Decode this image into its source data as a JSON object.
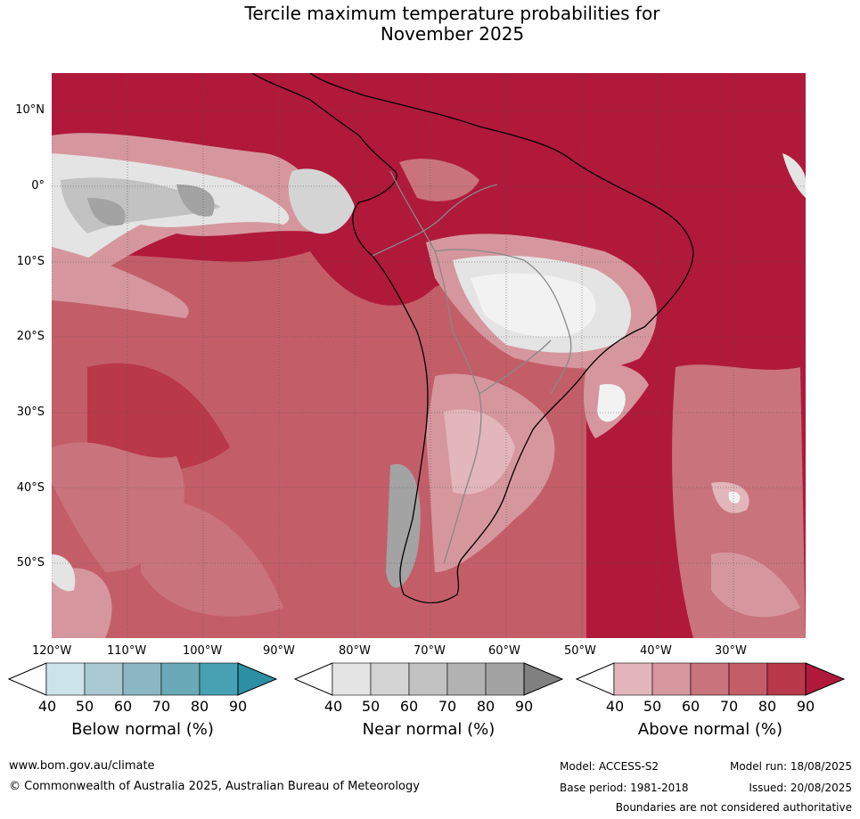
{
  "title": {
    "line1": "Tercile maximum temperature probabilities for",
    "line2": "November 2025"
  },
  "axes": {
    "lat_labels": [
      "10°N",
      "0°",
      "10°S",
      "20°S",
      "30°S",
      "40°S",
      "50°S"
    ],
    "lon_labels": [
      "120°W",
      "110°W",
      "100°W",
      "90°W",
      "80°W",
      "70°W",
      "60°W",
      "50°W",
      "40°W",
      "30°W"
    ]
  },
  "colorbars": {
    "below": {
      "title": "Below normal (%)",
      "ticks": [
        "40",
        "50",
        "60",
        "70",
        "80",
        "90"
      ],
      "colors": [
        "#ffffff",
        "#cce3ea",
        "#a8c9d1",
        "#8ab7c2",
        "#69a9b8",
        "#48a1b3",
        "#2d8fa4"
      ]
    },
    "near": {
      "title": "Near normal (%)",
      "ticks": [
        "40",
        "50",
        "60",
        "70",
        "80",
        "90"
      ],
      "colors": [
        "#ffffff",
        "#e4e4e4",
        "#d4d4d4",
        "#c2c2c2",
        "#b2b2b2",
        "#a3a3a3",
        "#808080"
      ]
    },
    "above": {
      "title": "Above normal (%)",
      "ticks": [
        "40",
        "50",
        "60",
        "70",
        "80",
        "90"
      ],
      "colors": [
        "#ffffff",
        "#e2b6bb",
        "#d5979d",
        "#c9737c",
        "#c35e69",
        "#b9384a",
        "#b0193a"
      ]
    }
  },
  "footer": {
    "website": "www.bom.gov.au/climate",
    "copyright": "© Commonwealth of Australia 2025, Australian Bureau of Meteorology",
    "model": "Model: ACCESS-S2",
    "base_period": "Base period: 1981-2018",
    "model_run": "Model run: 18/08/2025",
    "issued": "Issued: 20/08/2025",
    "disclaimer": "Boundaries are not considered authoritative"
  }
}
